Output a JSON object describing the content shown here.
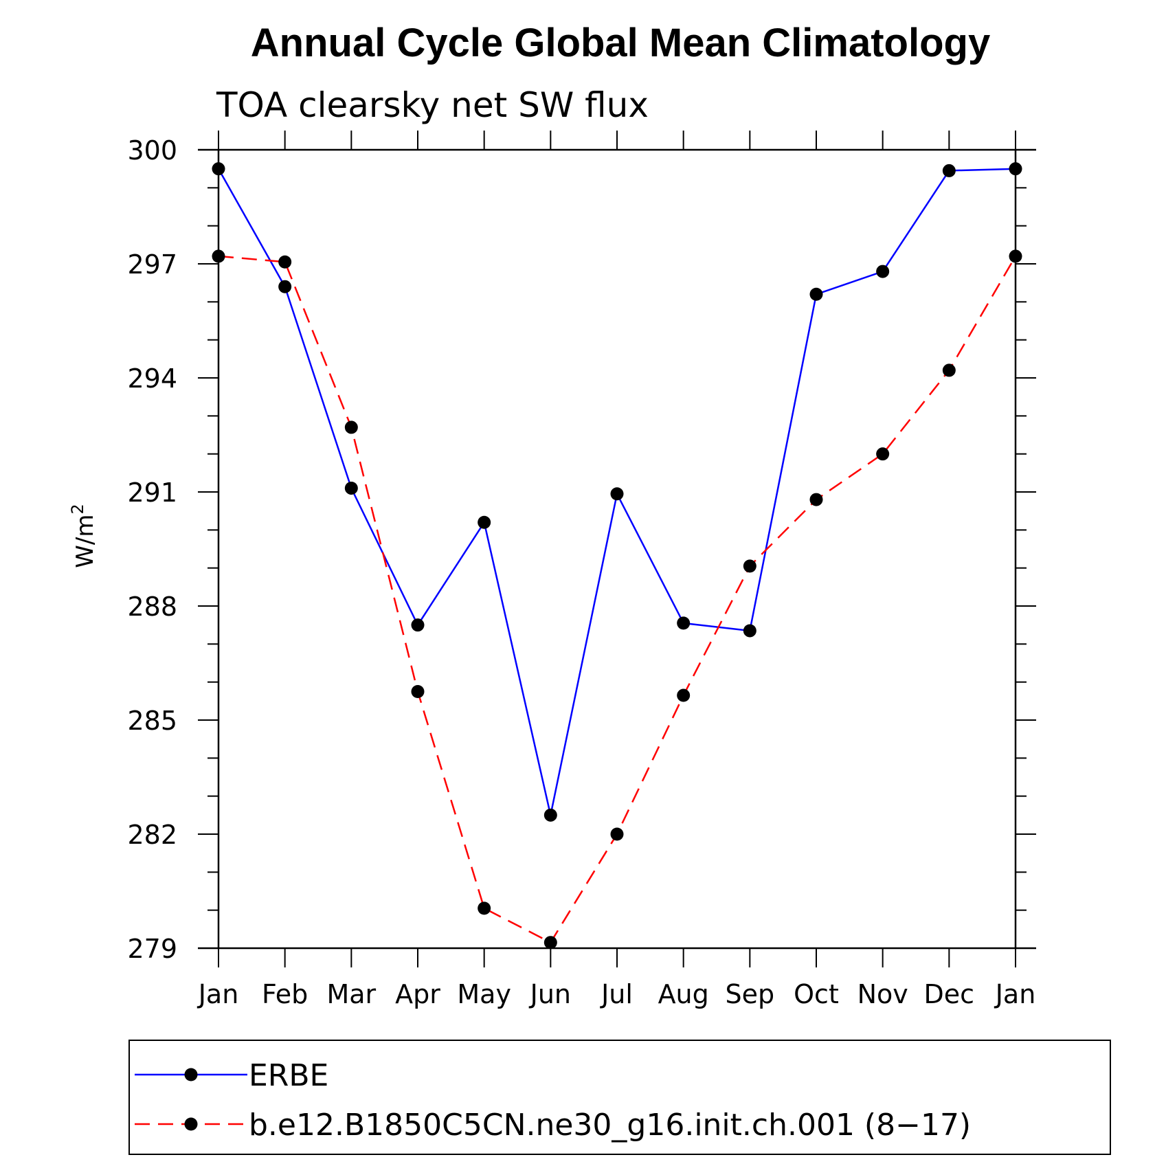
{
  "chart_data": {
    "type": "line",
    "title": "Annual Cycle Global Mean Climatology",
    "subtitle": "TOA clearsky net SW flux",
    "ylabel": "W/m",
    "ylabel_superscript": "2",
    "categories": [
      "Jan",
      "Feb",
      "Mar",
      "Apr",
      "May",
      "Jun",
      "Jul",
      "Aug",
      "Sep",
      "Oct",
      "Nov",
      "Dec",
      "Jan"
    ],
    "ylim": [
      279,
      300
    ],
    "yticks": [
      279,
      282,
      285,
      288,
      291,
      294,
      297,
      300
    ],
    "grid": false,
    "legend_position": "bottom",
    "series": [
      {
        "name": "ERBE",
        "color": "#0000ff",
        "line_style": "solid",
        "values": [
          299.5,
          296.4,
          291.1,
          287.5,
          290.2,
          282.5,
          290.95,
          287.55,
          287.35,
          296.2,
          296.8,
          299.45,
          299.5
        ]
      },
      {
        "name": "b.e12.B1850C5CN.ne30_g16.init.ch.001 (8−17)",
        "color": "#ff0000",
        "line_style": "dashed",
        "values": [
          297.2,
          297.05,
          292.7,
          285.75,
          280.05,
          279.15,
          282.0,
          285.65,
          289.05,
          290.8,
          292.0,
          294.2,
          297.2
        ]
      }
    ]
  }
}
